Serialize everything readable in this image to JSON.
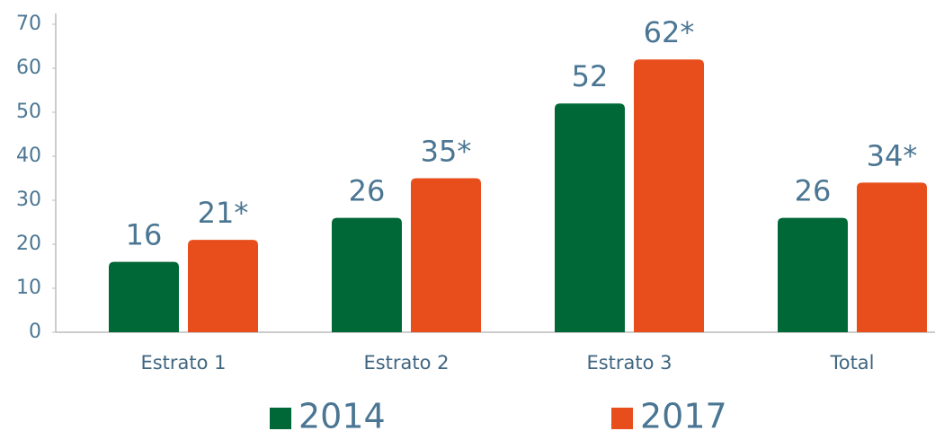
{
  "chart_data": {
    "type": "bar",
    "categories": [
      "Estrato 1",
      "Estrato 2",
      "Estrato 3",
      "Total"
    ],
    "series": [
      {
        "name": "2014",
        "color": "#006837",
        "values": [
          16,
          26,
          52,
          26
        ]
      },
      {
        "name": "2017",
        "color": "#e84e1b",
        "values": [
          21,
          35,
          62,
          34
        ],
        "value_labels": [
          "21*",
          "35*",
          "62*",
          "34*"
        ]
      }
    ],
    "ylim": [
      0,
      70
    ],
    "yticks": [
      0,
      10,
      20,
      30,
      40,
      50,
      60,
      70
    ],
    "grid": false,
    "legend": "bottom"
  }
}
